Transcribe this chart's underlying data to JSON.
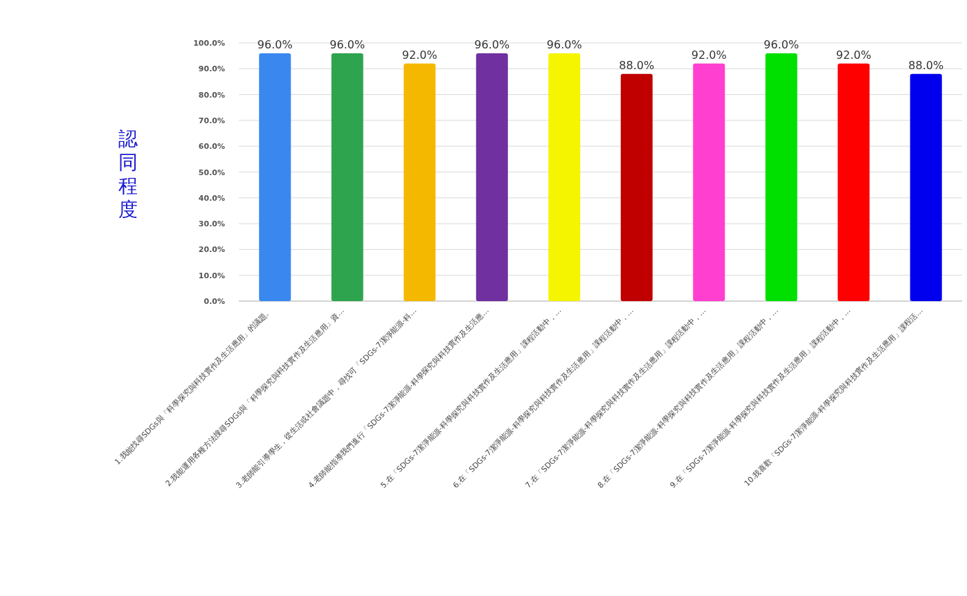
{
  "chart_data": {
    "type": "bar",
    "ylabel": "認同程度",
    "categories": [
      "1.我能找尋SDGs與「科學探究與科技實作及生活應用」的議題。",
      "2.我能運用各種方法搜尋SDGs與「科學探究與科技實作及生活應用」資…",
      "3.老師能引導學生，從生活或社會議題中，尋找可「SDGs-7潔淨能源-科…",
      "4.老師能指導我們進行「SDGs-7潔淨能源-科學探究與科技實作及生活應…",
      "5.在「SDGs-7潔淨能源-科學探究與科技實作及生活應用」課程活動中，…",
      "6.在「SDGs-7潔淨能源-科學探究與科技實作及生活應用」課程活動中，…",
      "7.在「SDGs-7潔淨能源-科學探究與科技實作及生活應用」課程活動中，…",
      "8.在「SDGs-7潔淨能源-科學探究與科技實作及生活應用」課程活動中，…",
      "9.在「SDGs-7潔淨能源-科學探究與科技實作及生活應用」課程活動中，…",
      "10.我喜歡「SDGs-7潔淨能源-科學探究與科技實作及生活應用」課程活…"
    ],
    "values": [
      96,
      96,
      92,
      96,
      96,
      88,
      92,
      96,
      92,
      88
    ],
    "value_labels": [
      "96.0%",
      "96.0%",
      "92.0%",
      "96.0%",
      "96.0%",
      "88.0%",
      "92.0%",
      "96.0%",
      "92.0%",
      "88.0%"
    ],
    "colors": [
      "#3a87f0",
      "#2ea44f",
      "#f5b800",
      "#7030a0",
      "#f5f500",
      "#c00000",
      "#ff3fd0",
      "#00e000",
      "#ff0000",
      "#0000ee"
    ],
    "ylim": [
      0,
      100
    ],
    "yticks": [
      {
        "value": 0,
        "label": "0.0%"
      },
      {
        "value": 10,
        "label": "10.0%"
      },
      {
        "value": 20,
        "label": "20.0%"
      },
      {
        "value": 30,
        "label": "30.0%"
      },
      {
        "value": 40,
        "label": "40.0%"
      },
      {
        "value": 50,
        "label": "50.0%"
      },
      {
        "value": 60,
        "label": "60.0%"
      },
      {
        "value": 70,
        "label": "70.0%"
      },
      {
        "value": 80,
        "label": "80.0%"
      },
      {
        "value": 90,
        "label": "90.0%"
      },
      {
        "value": 100,
        "label": "100.0%"
      }
    ],
    "grid": "y"
  }
}
